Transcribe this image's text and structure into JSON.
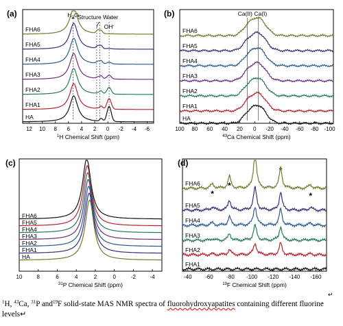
{
  "panels": [
    {
      "id": "a",
      "label": "(a)",
      "xlabel_sup": "1",
      "xlabel": "H Chemical Shift (ppm)",
      "x_range": [
        13,
        -7
      ],
      "x_ticks": [
        12,
        10,
        8,
        6,
        4,
        2,
        0,
        -2,
        -4,
        -6
      ],
      "annotations": [
        {
          "text_main": "H",
          "text_sub": "2",
          "text_after": "O",
          "x": 5.3
        },
        {
          "text_main": "Structure Water",
          "x": 1.5
        },
        {
          "text_main": "OH",
          "text_sup": "-",
          "x": -0.2
        }
      ],
      "series": [
        {
          "name": "FHA6",
          "color": "#6e7a2e"
        },
        {
          "name": "FHA5",
          "color": "#3d2a78"
        },
        {
          "name": "FHA4",
          "color": "#2a5a8c"
        },
        {
          "name": "FHA3",
          "color": "#6a2d80"
        },
        {
          "name": "FHA2",
          "color": "#237a5a"
        },
        {
          "name": "FHA1",
          "color": "#b8202e"
        },
        {
          "name": "HA",
          "color": "#111111"
        }
      ]
    },
    {
      "id": "b",
      "label": "(b)",
      "xlabel_sup": "43",
      "xlabel": "Ca Chemical Shift (ppm)",
      "x_range": [
        100,
        -105
      ],
      "x_ticks": [
        100,
        80,
        60,
        40,
        20,
        0,
        -20,
        -40,
        -60,
        -80,
        -100
      ],
      "annotations": [
        {
          "text_main": "Ca(II) Ca(I)",
          "x": 3
        }
      ],
      "series": [
        {
          "name": "FHA6",
          "color": "#6e7a2e"
        },
        {
          "name": "FHA5",
          "color": "#3d2a78"
        },
        {
          "name": "FHA4",
          "color": "#2a5a8c"
        },
        {
          "name": "FHA3",
          "color": "#6a2d80"
        },
        {
          "name": "FHA2",
          "color": "#237a5a"
        },
        {
          "name": "FHA1",
          "color": "#b8202e"
        },
        {
          "name": "HA",
          "color": "#111111"
        }
      ]
    },
    {
      "id": "c",
      "label": "(c)",
      "xlabel_sup": "31",
      "xlabel": "P Chemical Shift (ppm)",
      "x_range": [
        10,
        -5
      ],
      "x_ticks": [
        10,
        8,
        6,
        4,
        2,
        0,
        -2,
        -4
      ],
      "annotations": [],
      "series": [
        {
          "name": "FHA6",
          "color": "#111111"
        },
        {
          "name": "FHA5",
          "color": "#b8202e"
        },
        {
          "name": "FHA4",
          "color": "#237a5a"
        },
        {
          "name": "FHA3",
          "color": "#6a2d80"
        },
        {
          "name": "FHA2",
          "color": "#2a5a8c"
        },
        {
          "name": "FHA1",
          "color": "#3d2a78"
        },
        {
          "name": "HA",
          "color": "#6e7a2e"
        }
      ]
    },
    {
      "id": "d",
      "label": "(d)",
      "xlabel_sup": "19",
      "xlabel": "F Chemical Shift (ppm)",
      "x_range": [
        -35,
        -170
      ],
      "x_ticks": [
        -40,
        -60,
        -80,
        -100,
        -120,
        -140,
        -160
      ],
      "annotations": [
        {
          "text_main": "*",
          "x": -63
        },
        {
          "text_main": "*",
          "x": -79
        },
        {
          "text_main": "*",
          "x": -127
        },
        {
          "text_main": "*",
          "x": -155
        }
      ],
      "series": [
        {
          "name": "FHA6",
          "color": "#6e7a2e"
        },
        {
          "name": "FHA5",
          "color": "#3d2a78"
        },
        {
          "name": "FHA4",
          "color": "#2a5a8c"
        },
        {
          "name": "FHA3",
          "color": "#237a5a"
        },
        {
          "name": "FHA2",
          "color": "#b8202e"
        },
        {
          "name": "FHA1",
          "color": "#111111"
        }
      ]
    }
  ],
  "caption": {
    "sup1": "1",
    "t1": "H, ",
    "sup2": "43",
    "t2": "Ca, ",
    "sup3": "31",
    "t3": "P and",
    "sup4": "19",
    "t4": "F solid-state MAS NMR spectra of ",
    "t5": "fluorohydroxyapatites",
    "t6": " containing different fluorine levels",
    "return_mark": "↵"
  },
  "return_mark_top": "↵"
}
